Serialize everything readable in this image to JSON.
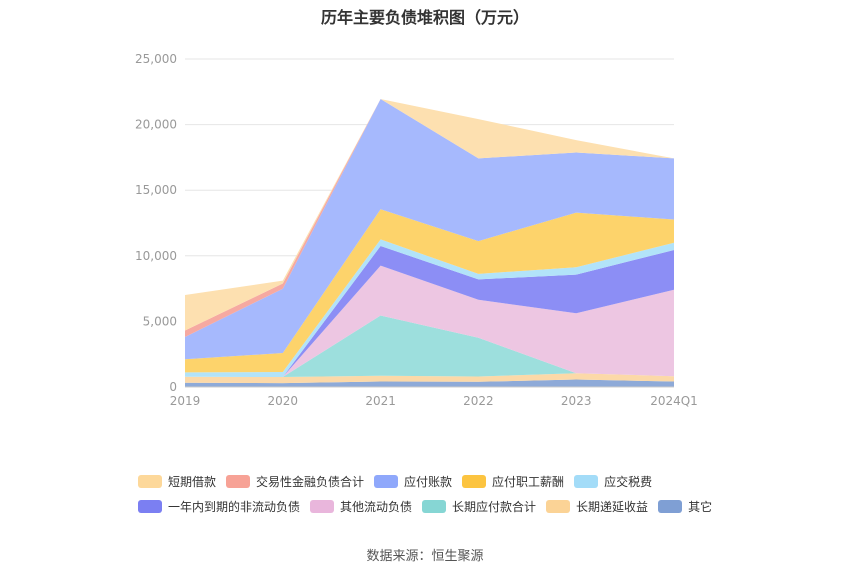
{
  "chart_data": {
    "type": "area",
    "title": "历年主要负债堆积图（万元）",
    "categories": [
      "2019",
      "2020",
      "2021",
      "2022",
      "2023",
      "2024Q1"
    ],
    "ylim": [
      0,
      25000
    ],
    "yticks": [
      "0",
      "5,000",
      "10,000",
      "15,000",
      "20,000",
      "25,000"
    ],
    "grid": true,
    "legend_position": "bottom",
    "series": [
      {
        "name": "其它",
        "color": "#8eaad8",
        "values": [
          330,
          300,
          420,
          400,
          570,
          420
        ]
      },
      {
        "name": "长期递延收益",
        "color": "#fcd9a8",
        "values": [
          450,
          460,
          430,
          400,
          480,
          400
        ]
      },
      {
        "name": "长期应付款合计",
        "color": "#9ddfdd",
        "values": [
          0,
          0,
          4600,
          2950,
          0,
          0
        ]
      },
      {
        "name": "其他流动负债",
        "color": "#edc6e2",
        "values": [
          0,
          0,
          3800,
          2900,
          4570,
          6590
        ]
      },
      {
        "name": "一年内到期的非流动负债",
        "color": "#8c8ef5",
        "values": [
          0,
          0,
          1500,
          1550,
          2950,
          3030
        ]
      },
      {
        "name": "应交税费",
        "color": "#b2e3f9",
        "values": [
          330,
          380,
          500,
          420,
          560,
          550
        ]
      },
      {
        "name": "应付职工薪酬",
        "color": "#fdd36b",
        "values": [
          1000,
          1450,
          2300,
          2500,
          4160,
          1780
        ]
      },
      {
        "name": "应付账款",
        "color": "#a6b9fd",
        "values": [
          1700,
          4900,
          8400,
          6300,
          4580,
          4650
        ]
      },
      {
        "name": "交易性金融负债合计",
        "color": "#f6a9a1",
        "values": [
          500,
          400,
          0,
          0,
          0,
          0
        ]
      },
      {
        "name": "短期借款",
        "color": "#fde0b0",
        "values": [
          2700,
          220,
          0,
          3000,
          950,
          0
        ]
      }
    ]
  },
  "legend": {
    "row1": [
      "短期借款",
      "交易性金融负债合计",
      "应付账款",
      "应付职工薪酬",
      "应交税费"
    ],
    "row2": [
      "一年内到期的非流动负债",
      "其他流动负债",
      "长期应付款合计",
      "长期递延收益",
      "其它"
    ],
    "colors": {
      "短期借款": "#fdd89a",
      "交易性金融负债合计": "#f7a296",
      "应付账款": "#8fa8fb",
      "应付职工薪酬": "#fcc440",
      "应交税费": "#a3dcf8",
      "一年内到期的非流动负债": "#7b7ff2",
      "其他流动负债": "#e9b6dc",
      "长期应付款合计": "#86d6d4",
      "长期递延收益": "#fbd396",
      "其它": "#7f9fd4"
    }
  },
  "source": "数据来源：恒生聚源"
}
